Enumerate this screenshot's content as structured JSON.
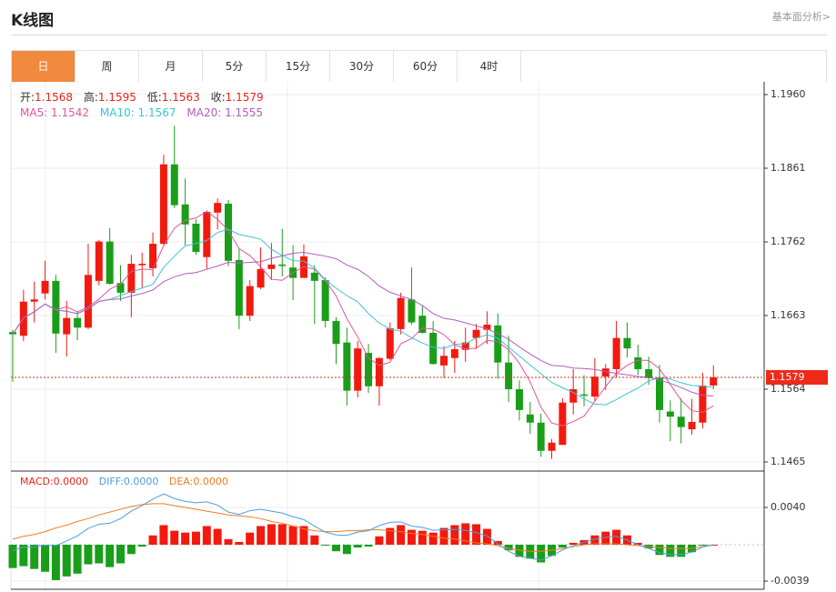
{
  "header": {
    "title": "K线图",
    "fundamental_link": "基本面分析>"
  },
  "tabs": [
    {
      "label": "日",
      "active": true
    },
    {
      "label": "周"
    },
    {
      "label": "月"
    },
    {
      "label": "5分"
    },
    {
      "label": "15分"
    },
    {
      "label": "30分"
    },
    {
      "label": "60分"
    },
    {
      "label": "4时"
    }
  ],
  "ohlc_legend": {
    "open_label": "开:",
    "open": "1.1568",
    "high_label": "高:",
    "high": "1.1595",
    "low_label": "低:",
    "low": "1.1563",
    "close_label": "收:",
    "close": "1.1579"
  },
  "ma_legend": {
    "ma5": "MA5: 1.1542",
    "ma10": "MA10: 1.1567",
    "ma20": "MA20: 1.1555"
  },
  "macd_legend": {
    "macd": "MACD:0.0000",
    "diff": "DIFF:0.0000",
    "dea": "DEA:0.0000"
  },
  "colors": {
    "up": "#f21a0e",
    "down": "#1a9e1a",
    "ma5": "#e0569a",
    "ma10": "#3cc4d4",
    "ma20": "#b05cc0",
    "diff": "#4a9ee0",
    "dea": "#f07c20",
    "accent": "#f0883e"
  },
  "current_price": "1.1579",
  "chart_data": [
    {
      "type": "candlestick",
      "ylim": [
        1.1465,
        1.196
      ],
      "yticks": [
        "1.1960",
        "1.1861",
        "1.1762",
        "1.1663",
        "1.1564",
        "1.1465"
      ],
      "grid": true,
      "ohlc": [
        [
          1.164,
          1.1643,
          1.1573,
          1.1637
        ],
        [
          1.1635,
          1.1697,
          1.1628,
          1.1681
        ],
        [
          1.1681,
          1.1708,
          1.1653,
          1.1684
        ],
        [
          1.1692,
          1.1736,
          1.1684,
          1.1709
        ],
        [
          1.1709,
          1.1717,
          1.1612,
          1.1638
        ],
        [
          1.1637,
          1.1682,
          1.1607,
          1.1659
        ],
        [
          1.1659,
          1.1668,
          1.1629,
          1.1646
        ],
        [
          1.1646,
          1.1759,
          1.1644,
          1.1717
        ],
        [
          1.1709,
          1.1764,
          1.1703,
          1.1762
        ],
        [
          1.1762,
          1.178,
          1.1704,
          1.1705
        ],
        [
          1.1706,
          1.173,
          1.1682,
          1.1693
        ],
        [
          1.1693,
          1.1744,
          1.166,
          1.1732
        ],
        [
          1.173,
          1.1747,
          1.17,
          1.1732
        ],
        [
          1.1726,
          1.1774,
          1.1715,
          1.1759
        ],
        [
          1.1759,
          1.1879,
          1.1757,
          1.1866
        ],
        [
          1.1866,
          1.1918,
          1.1807,
          1.1811
        ],
        [
          1.1812,
          1.1847,
          1.1757,
          1.1785
        ],
        [
          1.1786,
          1.1792,
          1.1744,
          1.1748
        ],
        [
          1.1741,
          1.1804,
          1.1725,
          1.1802
        ],
        [
          1.1801,
          1.182,
          1.1778,
          1.1814
        ],
        [
          1.1813,
          1.1818,
          1.1729,
          1.1736
        ],
        [
          1.1737,
          1.1753,
          1.1644,
          1.1662
        ],
        [
          1.1662,
          1.171,
          1.1655,
          1.1702
        ],
        [
          1.17,
          1.1754,
          1.1698,
          1.1725
        ],
        [
          1.1725,
          1.176,
          1.171,
          1.1731
        ],
        [
          1.1731,
          1.1779,
          1.1715,
          1.1729
        ],
        [
          1.1727,
          1.1757,
          1.1683,
          1.1713
        ],
        [
          1.1713,
          1.1758,
          1.1713,
          1.1742
        ],
        [
          1.172,
          1.173,
          1.1651,
          1.1709
        ],
        [
          1.171,
          1.1714,
          1.1646,
          1.1655
        ],
        [
          1.1655,
          1.166,
          1.1597,
          1.1624
        ],
        [
          1.1626,
          1.1646,
          1.1541,
          1.1561
        ],
        [
          1.1561,
          1.1628,
          1.1552,
          1.1618
        ],
        [
          1.1612,
          1.1624,
          1.1558,
          1.1567
        ],
        [
          1.1567,
          1.1606,
          1.1541,
          1.1605
        ],
        [
          1.1604,
          1.1653,
          1.1602,
          1.1645
        ],
        [
          1.1644,
          1.1693,
          1.1637,
          1.1686
        ],
        [
          1.1684,
          1.1727,
          1.165,
          1.1653
        ],
        [
          1.1662,
          1.1676,
          1.1638,
          1.1639
        ],
        [
          1.1639,
          1.1655,
          1.1596,
          1.1597
        ],
        [
          1.1595,
          1.1621,
          1.1578,
          1.1608
        ],
        [
          1.1605,
          1.1628,
          1.1585,
          1.1617
        ],
        [
          1.1616,
          1.1646,
          1.16,
          1.1626
        ],
        [
          1.1632,
          1.1651,
          1.1617,
          1.1643
        ],
        [
          1.1643,
          1.1668,
          1.1624,
          1.165
        ],
        [
          1.1649,
          1.1665,
          1.1577,
          1.1599
        ],
        [
          1.1599,
          1.1635,
          1.1546,
          1.1563
        ],
        [
          1.1563,
          1.1575,
          1.1521,
          1.1535
        ],
        [
          1.1529,
          1.1546,
          1.1503,
          1.1518
        ],
        [
          1.1518,
          1.153,
          1.1472,
          1.148
        ],
        [
          1.148,
          1.1496,
          1.1469,
          1.1491
        ],
        [
          1.1488,
          1.1551,
          1.1488,
          1.1545
        ],
        [
          1.1545,
          1.159,
          1.1529,
          1.1563
        ],
        [
          1.1556,
          1.1582,
          1.154,
          1.1555
        ],
        [
          1.1553,
          1.1605,
          1.1547,
          1.158
        ],
        [
          1.158,
          1.1597,
          1.1562,
          1.1591
        ],
        [
          1.159,
          1.1655,
          1.1579,
          1.1632
        ],
        [
          1.1632,
          1.1653,
          1.1606,
          1.1618
        ],
        [
          1.1606,
          1.1623,
          1.1582,
          1.159
        ],
        [
          1.159,
          1.1607,
          1.1569,
          1.1578
        ],
        [
          1.1579,
          1.1596,
          1.1518,
          1.1535
        ],
        [
          1.1533,
          1.1548,
          1.1493,
          1.1526
        ],
        [
          1.1526,
          1.1551,
          1.149,
          1.1512
        ],
        [
          1.1509,
          1.155,
          1.1502,
          1.1519
        ],
        [
          1.1518,
          1.1585,
          1.151,
          1.1568
        ],
        [
          1.1568,
          1.1595,
          1.1563,
          1.1579
        ]
      ],
      "series": [
        {
          "name": "MA5",
          "period": 5
        },
        {
          "name": "MA10",
          "period": 10
        },
        {
          "name": "MA20",
          "period": 20
        }
      ]
    },
    {
      "type": "bar",
      "name": "MACD",
      "ylim": [
        -0.0039,
        0.004
      ],
      "yticks": [
        "0.0040",
        "-0.0039"
      ],
      "macd": [
        -0.0025,
        -0.0023,
        -0.0026,
        -0.0029,
        -0.0038,
        -0.0034,
        -0.0031,
        -0.0021,
        -0.002,
        -0.0024,
        -0.002,
        -0.001,
        -0.0002,
        0.001,
        0.0021,
        0.0015,
        0.0013,
        0.0014,
        0.002,
        0.0017,
        0.0006,
        0.0003,
        0.0013,
        0.002,
        0.0022,
        0.0022,
        0.002,
        0.002,
        0.001,
        -0.0001,
        -0.0007,
        -0.001,
        -0.0003,
        -0.0002,
        0.0009,
        0.0018,
        0.0021,
        0.0016,
        0.0015,
        0.0013,
        0.0018,
        0.0021,
        0.0023,
        0.0022,
        0.0017,
        0.0004,
        -0.0006,
        -0.0013,
        -0.0015,
        -0.0019,
        -0.0012,
        -0.0003,
        0.0002,
        0.0005,
        0.001,
        0.0014,
        0.0016,
        0.001,
        0.0002,
        -0.0004,
        -0.0011,
        -0.0013,
        -0.0013,
        -0.0008,
        -0.0001,
        0.0
      ],
      "dea": [
        0.0006,
        0.0009,
        0.0011,
        0.0014,
        0.0018,
        0.0021,
        0.0025,
        0.0028,
        0.0032,
        0.0035,
        0.0038,
        0.0041,
        0.0043,
        0.0044,
        0.0044,
        0.0042,
        0.004,
        0.0038,
        0.0036,
        0.0034,
        0.0032,
        0.0031,
        0.003,
        0.0028,
        0.0025,
        0.0023,
        0.002,
        0.0017,
        0.0015,
        0.0014,
        0.0014,
        0.0015,
        0.0015,
        0.0016,
        0.0016,
        0.0015,
        0.0014,
        0.0012,
        0.0011,
        0.0009,
        0.0007,
        0.0006,
        0.0004,
        0.0002,
        0.0001,
        -0.0001,
        -0.0004,
        -0.0006,
        -0.0007,
        -0.0007,
        -0.0006,
        -0.0004,
        -0.0002,
        0.0,
        0.0001,
        0.0001,
        0.0001,
        0.0,
        -0.0001,
        -0.0002,
        -0.0003,
        -0.0004,
        -0.0004,
        -0.0004,
        -0.0002,
        0.0
      ]
    }
  ]
}
